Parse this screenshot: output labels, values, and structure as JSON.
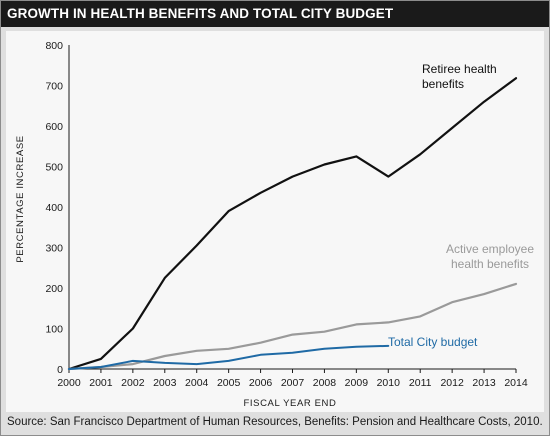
{
  "title": "GROWTH IN HEALTH BENEFITS AND TOTAL CITY BUDGET",
  "source": "Source: San Francisco Department of Human Resources, Benefits: Pension and Healthcare Costs, 2010.",
  "colors": {
    "title_background": "#1a1a1a",
    "frame_background": "#dfdfdf",
    "plot_background": "#f7f7f7",
    "retiree": "#111111",
    "active": "#9a9a9a",
    "budget": "#1f6aa5"
  },
  "chart_data": {
    "type": "line",
    "xlabel": "FISCAL YEAR END",
    "ylabel": "PERCENTAGE INCREASE",
    "x": [
      2000,
      2001,
      2002,
      2003,
      2004,
      2005,
      2006,
      2007,
      2008,
      2009,
      2010,
      2011,
      2012,
      2013,
      2014
    ],
    "ylim": [
      0,
      800
    ],
    "yticks": [
      0,
      100,
      200,
      300,
      400,
      500,
      600,
      700,
      800
    ],
    "grid": false,
    "legend": "inline labels",
    "series": [
      {
        "name": "Retiree health benefits",
        "label_lines": [
          "Retiree health",
          "benefits"
        ],
        "color": "#111111",
        "x": [
          2000,
          2001,
          2002,
          2003,
          2004,
          2005,
          2006,
          2007,
          2008,
          2009,
          2010,
          2011,
          2012,
          2013,
          2014
        ],
        "values": [
          0,
          25,
          100,
          225,
          305,
          390,
          435,
          475,
          505,
          525,
          475,
          530,
          595,
          660,
          718
        ]
      },
      {
        "name": "Active employee health benefits",
        "label_lines": [
          "Active employee",
          "health benefits"
        ],
        "color": "#9a9a9a",
        "x": [
          2000,
          2001,
          2002,
          2003,
          2004,
          2005,
          2006,
          2007,
          2008,
          2009,
          2010,
          2011,
          2012,
          2013,
          2014
        ],
        "values": [
          0,
          5,
          12,
          32,
          45,
          50,
          65,
          85,
          92,
          110,
          115,
          130,
          165,
          185,
          210
        ]
      },
      {
        "name": "Total City budget",
        "label_lines": [
          "Total City budget"
        ],
        "color": "#1f6aa5",
        "x": [
          2000,
          2001,
          2002,
          2003,
          2004,
          2005,
          2006,
          2007,
          2008,
          2009,
          2010
        ],
        "values": [
          0,
          5,
          20,
          15,
          12,
          20,
          35,
          40,
          50,
          55,
          57
        ]
      }
    ]
  }
}
